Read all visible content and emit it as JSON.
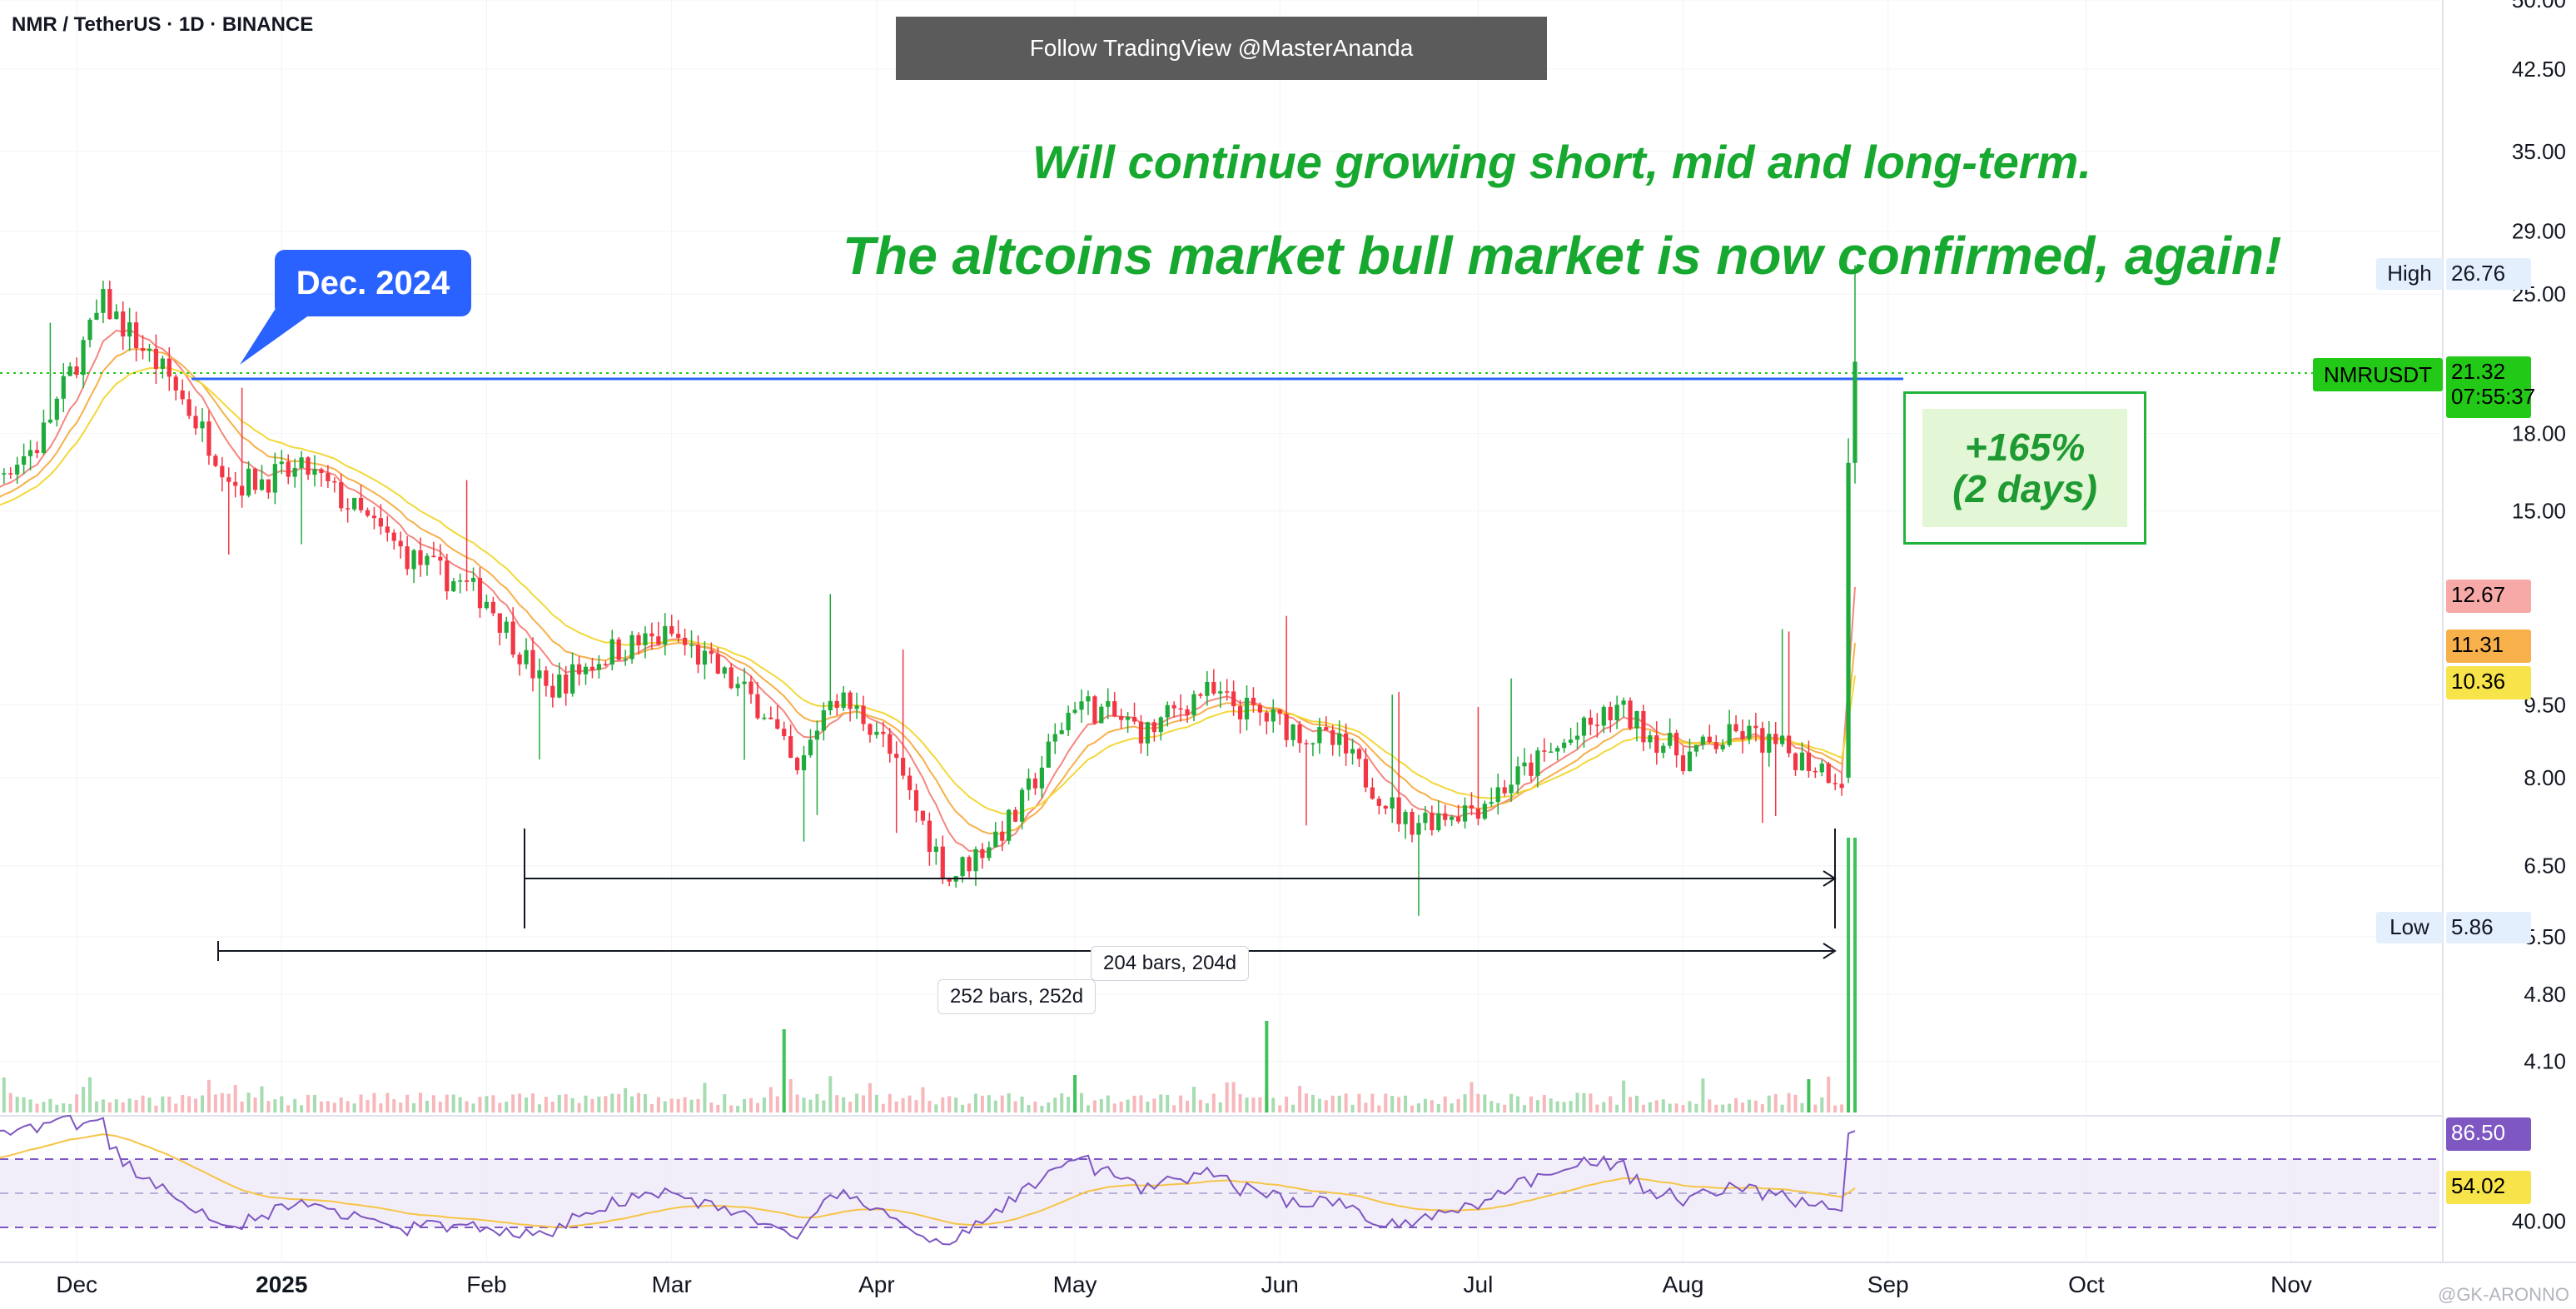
{
  "header": {
    "symbol": "NMR / TetherUS · 1D · BINANCE",
    "banner": "Follow TradingView @MasterAnanda"
  },
  "annotations": {
    "line1": "Will continue growing short, mid and long-term.",
    "line2": "The altcoins market bull market is now confirmed, again!",
    "callout": "Dec. 2024",
    "gain_pct": "+165%",
    "gain_period": "(2 days)",
    "range1": "204 bars, 204d",
    "range2": "252 bars, 252d"
  },
  "price_axis": {
    "ticks": [
      "50.00",
      "42.50",
      "35.00",
      "29.00",
      "25.00",
      "18.00",
      "15.00",
      "9.50",
      "8.00",
      "6.50",
      "5.50",
      "4.80",
      "4.10"
    ]
  },
  "badges": {
    "high_label": "High",
    "high_value": "26.76",
    "low_label": "Low",
    "low_value": "5.86",
    "ticker": "NMRUSDT",
    "price": "21.32",
    "countdown": "07:55:37",
    "ema1": "12.67",
    "ema2": "11.31",
    "ema3": "10.36"
  },
  "rsi_axis": {
    "tick": "40.00",
    "rsi": "86.50",
    "rsi_ma": "54.02"
  },
  "time_axis": [
    "Dec",
    "2025",
    "Feb",
    "Mar",
    "Apr",
    "May",
    "Jun",
    "Jul",
    "Aug",
    "Sep",
    "Oct",
    "Nov"
  ],
  "watermark": "@GK-ARONNO",
  "colors": {
    "up": "#26a69a",
    "up_green": "#1faa3c",
    "down": "#f23645",
    "ema_red": "#f5867e",
    "ema_orange": "#f7b04a",
    "ema_yellow": "#f2d83a",
    "rsi": "#7e57c2",
    "rsi_ma": "#f6c445",
    "accent": "#22c917",
    "callout": "#2962ff"
  },
  "chart_data": {
    "type": "candlestick",
    "title": "NMR / TetherUS · 1D · BINANCE",
    "ylabel": "",
    "log_scale": true,
    "y_ticks": [
      4.1,
      4.8,
      5.5,
      6.5,
      8.0,
      9.5,
      15.0,
      18.0,
      25.0,
      29.0,
      35.0,
      42.5,
      50.0
    ],
    "x_ticks": [
      "Dec",
      "2025",
      "Feb",
      "Mar",
      "Apr",
      "May",
      "Jun",
      "Jul",
      "Aug",
      "Sep",
      "Oct",
      "Nov"
    ],
    "high": 26.76,
    "low": 5.86,
    "last_price": 21.32,
    "ema_values": [
      12.67,
      11.31,
      10.36
    ],
    "rsi_last": 86.5,
    "rsi_ma_last": 54.02,
    "measured_ranges": [
      {
        "label": "204 bars, 204d"
      },
      {
        "label": "252 bars, 252d"
      }
    ],
    "move_annotation": "+165% (2 days)",
    "anchors": [
      {
        "date": "2024-11-10",
        "close": 14.8
      },
      {
        "date": "2024-11-25",
        "close": 17.5
      },
      {
        "date": "2024-12-05",
        "close": 24.5
      },
      {
        "date": "2024-12-15",
        "close": 20.5
      },
      {
        "date": "2024-12-25",
        "close": 16.0
      },
      {
        "date": "2025-01-05",
        "close": 16.5
      },
      {
        "date": "2025-01-20",
        "close": 13.5
      },
      {
        "date": "2025-02-01",
        "close": 12.2
      },
      {
        "date": "2025-02-10",
        "close": 9.8
      },
      {
        "date": "2025-02-20",
        "close": 10.8
      },
      {
        "date": "2025-03-01",
        "close": 11.2
      },
      {
        "date": "2025-03-15",
        "close": 9.4
      },
      {
        "date": "2025-03-20",
        "close": 8.0
      },
      {
        "date": "2025-03-25",
        "close": 9.8
      },
      {
        "date": "2025-04-01",
        "close": 9.0
      },
      {
        "date": "2025-04-12",
        "close": 6.3
      },
      {
        "date": "2025-04-22",
        "close": 7.3
      },
      {
        "date": "2025-05-01",
        "close": 9.6
      },
      {
        "date": "2025-05-12",
        "close": 8.9
      },
      {
        "date": "2025-05-20",
        "close": 9.8
      },
      {
        "date": "2025-06-01",
        "close": 9.1
      },
      {
        "date": "2025-06-10",
        "close": 8.6
      },
      {
        "date": "2025-06-20",
        "close": 7.2
      },
      {
        "date": "2025-07-01",
        "close": 7.5
      },
      {
        "date": "2025-07-10",
        "close": 8.3
      },
      {
        "date": "2025-07-22",
        "close": 9.4
      },
      {
        "date": "2025-08-01",
        "close": 8.4
      },
      {
        "date": "2025-08-10",
        "close": 8.9
      },
      {
        "date": "2025-08-22",
        "close": 8.2
      },
      {
        "date": "2025-08-25",
        "close": 8.0
      },
      {
        "date": "2025-08-26",
        "close": 16.8
      },
      {
        "date": "2025-08-27",
        "close": 21.32
      }
    ]
  }
}
